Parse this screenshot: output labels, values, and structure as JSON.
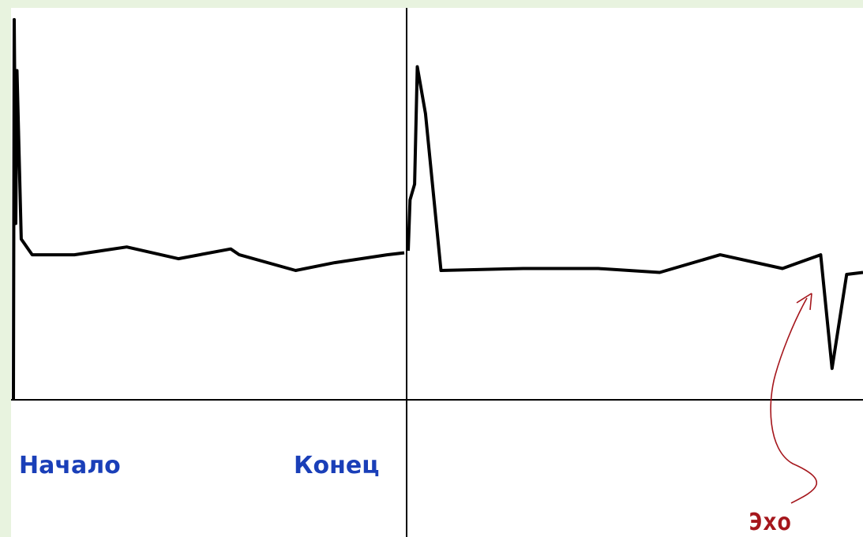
{
  "colors": {
    "background": "#e8f3df",
    "plot": "#ffffff",
    "trace": "#000000",
    "axis": "#000000",
    "label_blue": "#1a3fb8",
    "annotation": "#a5161c"
  },
  "chart_data": [
    {
      "type": "line",
      "title": "",
      "xlabel": "",
      "ylabel": "",
      "grid": false,
      "xlim": [
        0,
        100
      ],
      "ylim": [
        0,
        100
      ],
      "tick_labels": {
        "start": "Начало",
        "end": "Конец"
      },
      "series": [
        {
          "values": [
            [
              0,
              0
            ],
            [
              0.2,
              97
            ],
            [
              0.6,
              45
            ],
            [
              0.9,
              84
            ],
            [
              2.0,
              41
            ],
            [
              4.8,
              37
            ],
            [
              15.6,
              37
            ],
            [
              29.0,
              39
            ],
            [
              42.2,
              36
            ],
            [
              55.6,
              38.5
            ],
            [
              57.8,
              37
            ],
            [
              72.2,
              33
            ],
            [
              82.2,
              35
            ],
            [
              88.9,
              36
            ],
            [
              95.6,
              37
            ],
            [
              100,
              37.5
            ]
          ]
        }
      ]
    },
    {
      "type": "line",
      "title": "",
      "xlabel": "",
      "ylabel": "",
      "grid": false,
      "xlim": [
        0,
        100
      ],
      "ylim": [
        0,
        100
      ],
      "annotation": "Эхо",
      "series": [
        {
          "values": [
            [
              0,
              38
            ],
            [
              0.4,
              51
            ],
            [
              1.4,
              55
            ],
            [
              2.0,
              85
            ],
            [
              3.8,
              73
            ],
            [
              7.2,
              33
            ],
            [
              25.3,
              33.5
            ],
            [
              41.8,
              33.5
            ],
            [
              55.3,
              32.5
            ],
            [
              68.6,
              37
            ],
            [
              82.3,
              33.5
            ],
            [
              90.7,
              37
            ],
            [
              93.2,
              8
            ],
            [
              96.4,
              32
            ],
            [
              100,
              32.5
            ]
          ]
        }
      ]
    }
  ]
}
